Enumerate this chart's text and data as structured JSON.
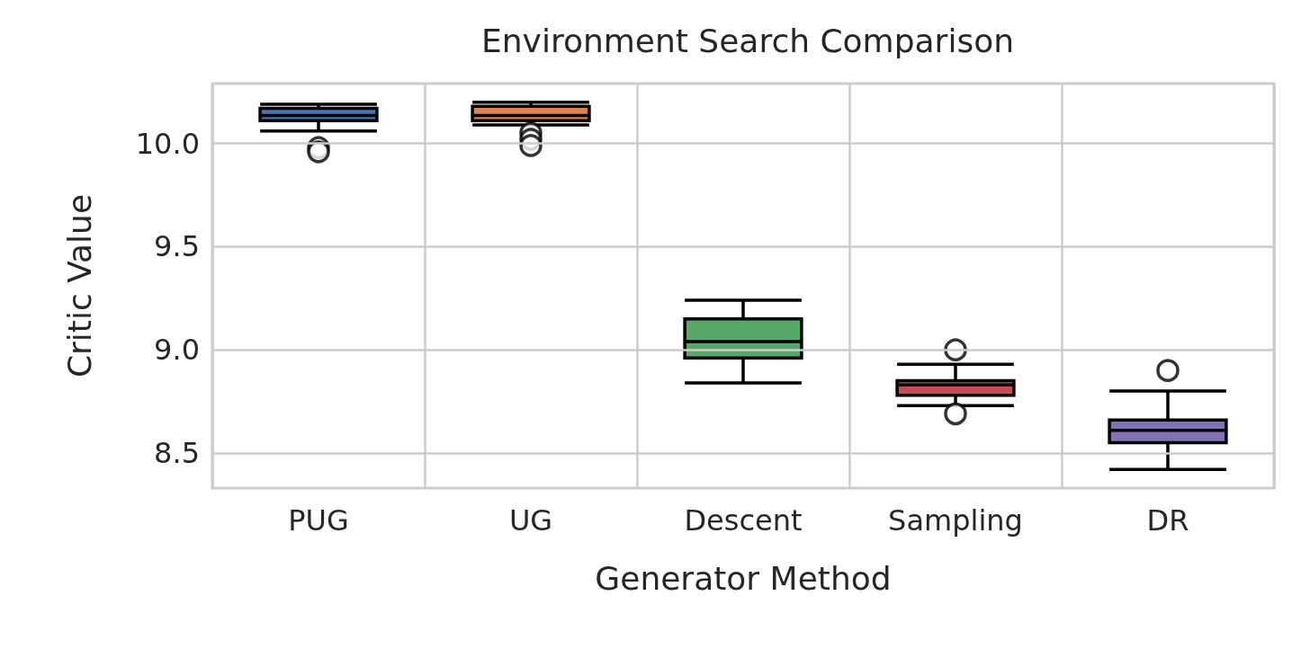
{
  "chart_data": {
    "type": "box",
    "title": "Environment Search Comparison",
    "xlabel": "Generator Method",
    "ylabel": "Critic Value",
    "categories": [
      "PUG",
      "UG",
      "Descent",
      "Sampling",
      "DR"
    ],
    "colors": [
      "#4c72b0",
      "#dd8452",
      "#55a868",
      "#c44e52",
      "#8172b3"
    ],
    "boxes": [
      {
        "low": 10.06,
        "q1": 10.11,
        "median": 10.135,
        "q3": 10.17,
        "high": 10.19,
        "outliers": [
          9.98,
          9.96
        ]
      },
      {
        "low": 10.09,
        "q1": 10.11,
        "median": 10.135,
        "q3": 10.18,
        "high": 10.2,
        "outliers": [
          10.05,
          10.02,
          9.99
        ]
      },
      {
        "low": 8.84,
        "q1": 8.96,
        "median": 9.04,
        "q3": 9.15,
        "high": 9.24
      },
      {
        "low": 8.73,
        "q1": 8.78,
        "median": 8.83,
        "q3": 8.85,
        "high": 8.93,
        "outliers": [
          9.0,
          8.69
        ]
      },
      {
        "low": 8.42,
        "q1": 8.55,
        "median": 8.61,
        "q3": 8.66,
        "high": 8.8,
        "outliers": [
          8.9
        ]
      }
    ],
    "ylim": [
      8.33,
      10.29
    ],
    "yticks": [
      {
        "value": 8.5,
        "label": "8.5"
      },
      {
        "value": 9,
        "label": "9.0"
      },
      {
        "value": 9.5,
        "label": "9.5"
      },
      {
        "value": 10,
        "label": "10.0"
      }
    ],
    "grid": true
  }
}
